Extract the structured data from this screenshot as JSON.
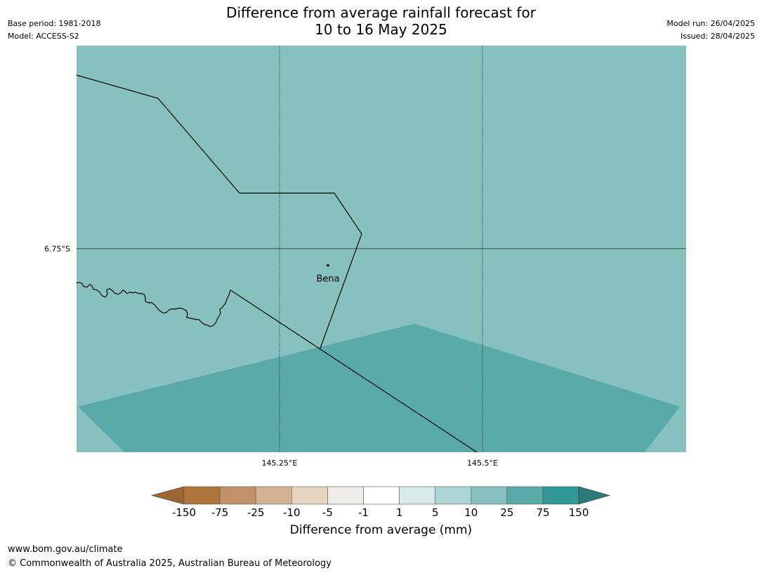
{
  "header": {
    "title_line1": "Difference from average rainfall forecast for",
    "title_line2": "10 to 16 May 2025",
    "base_period": "Base period: 1981-2018",
    "model": "Model: ACCESS-S2",
    "model_run": "Model run: 26/04/2025",
    "issued": "Issued: 28/04/2025"
  },
  "map": {
    "latitude_labels": [
      "6.75°S"
    ],
    "longitude_labels": [
      "145.25°E",
      "145.5°E"
    ],
    "place": {
      "name": "Bena"
    },
    "colors": {
      "background_category": "#86c0bf",
      "lower_band_category": "#5aaaa9"
    }
  },
  "legend": {
    "tick_labels": [
      "-150",
      "-75",
      "-25",
      "-10",
      "-5",
      "-1",
      "1",
      "5",
      "10",
      "25",
      "75",
      "150"
    ],
    "colors": [
      "#9c6531",
      "#b0753c",
      "#c29268",
      "#d4b192",
      "#e6d3c1",
      "#efebe7",
      "#ffffff",
      "#d7eaea",
      "#add5d5",
      "#86c0bf",
      "#5aaaa9",
      "#319896",
      "#2b7b7a"
    ],
    "label": "Difference from average (mm)"
  },
  "footer": {
    "url": "www.bom.gov.au/climate",
    "copyright": "© Commonwealth of Australia 2025, Australian Bureau of Meteorology"
  }
}
